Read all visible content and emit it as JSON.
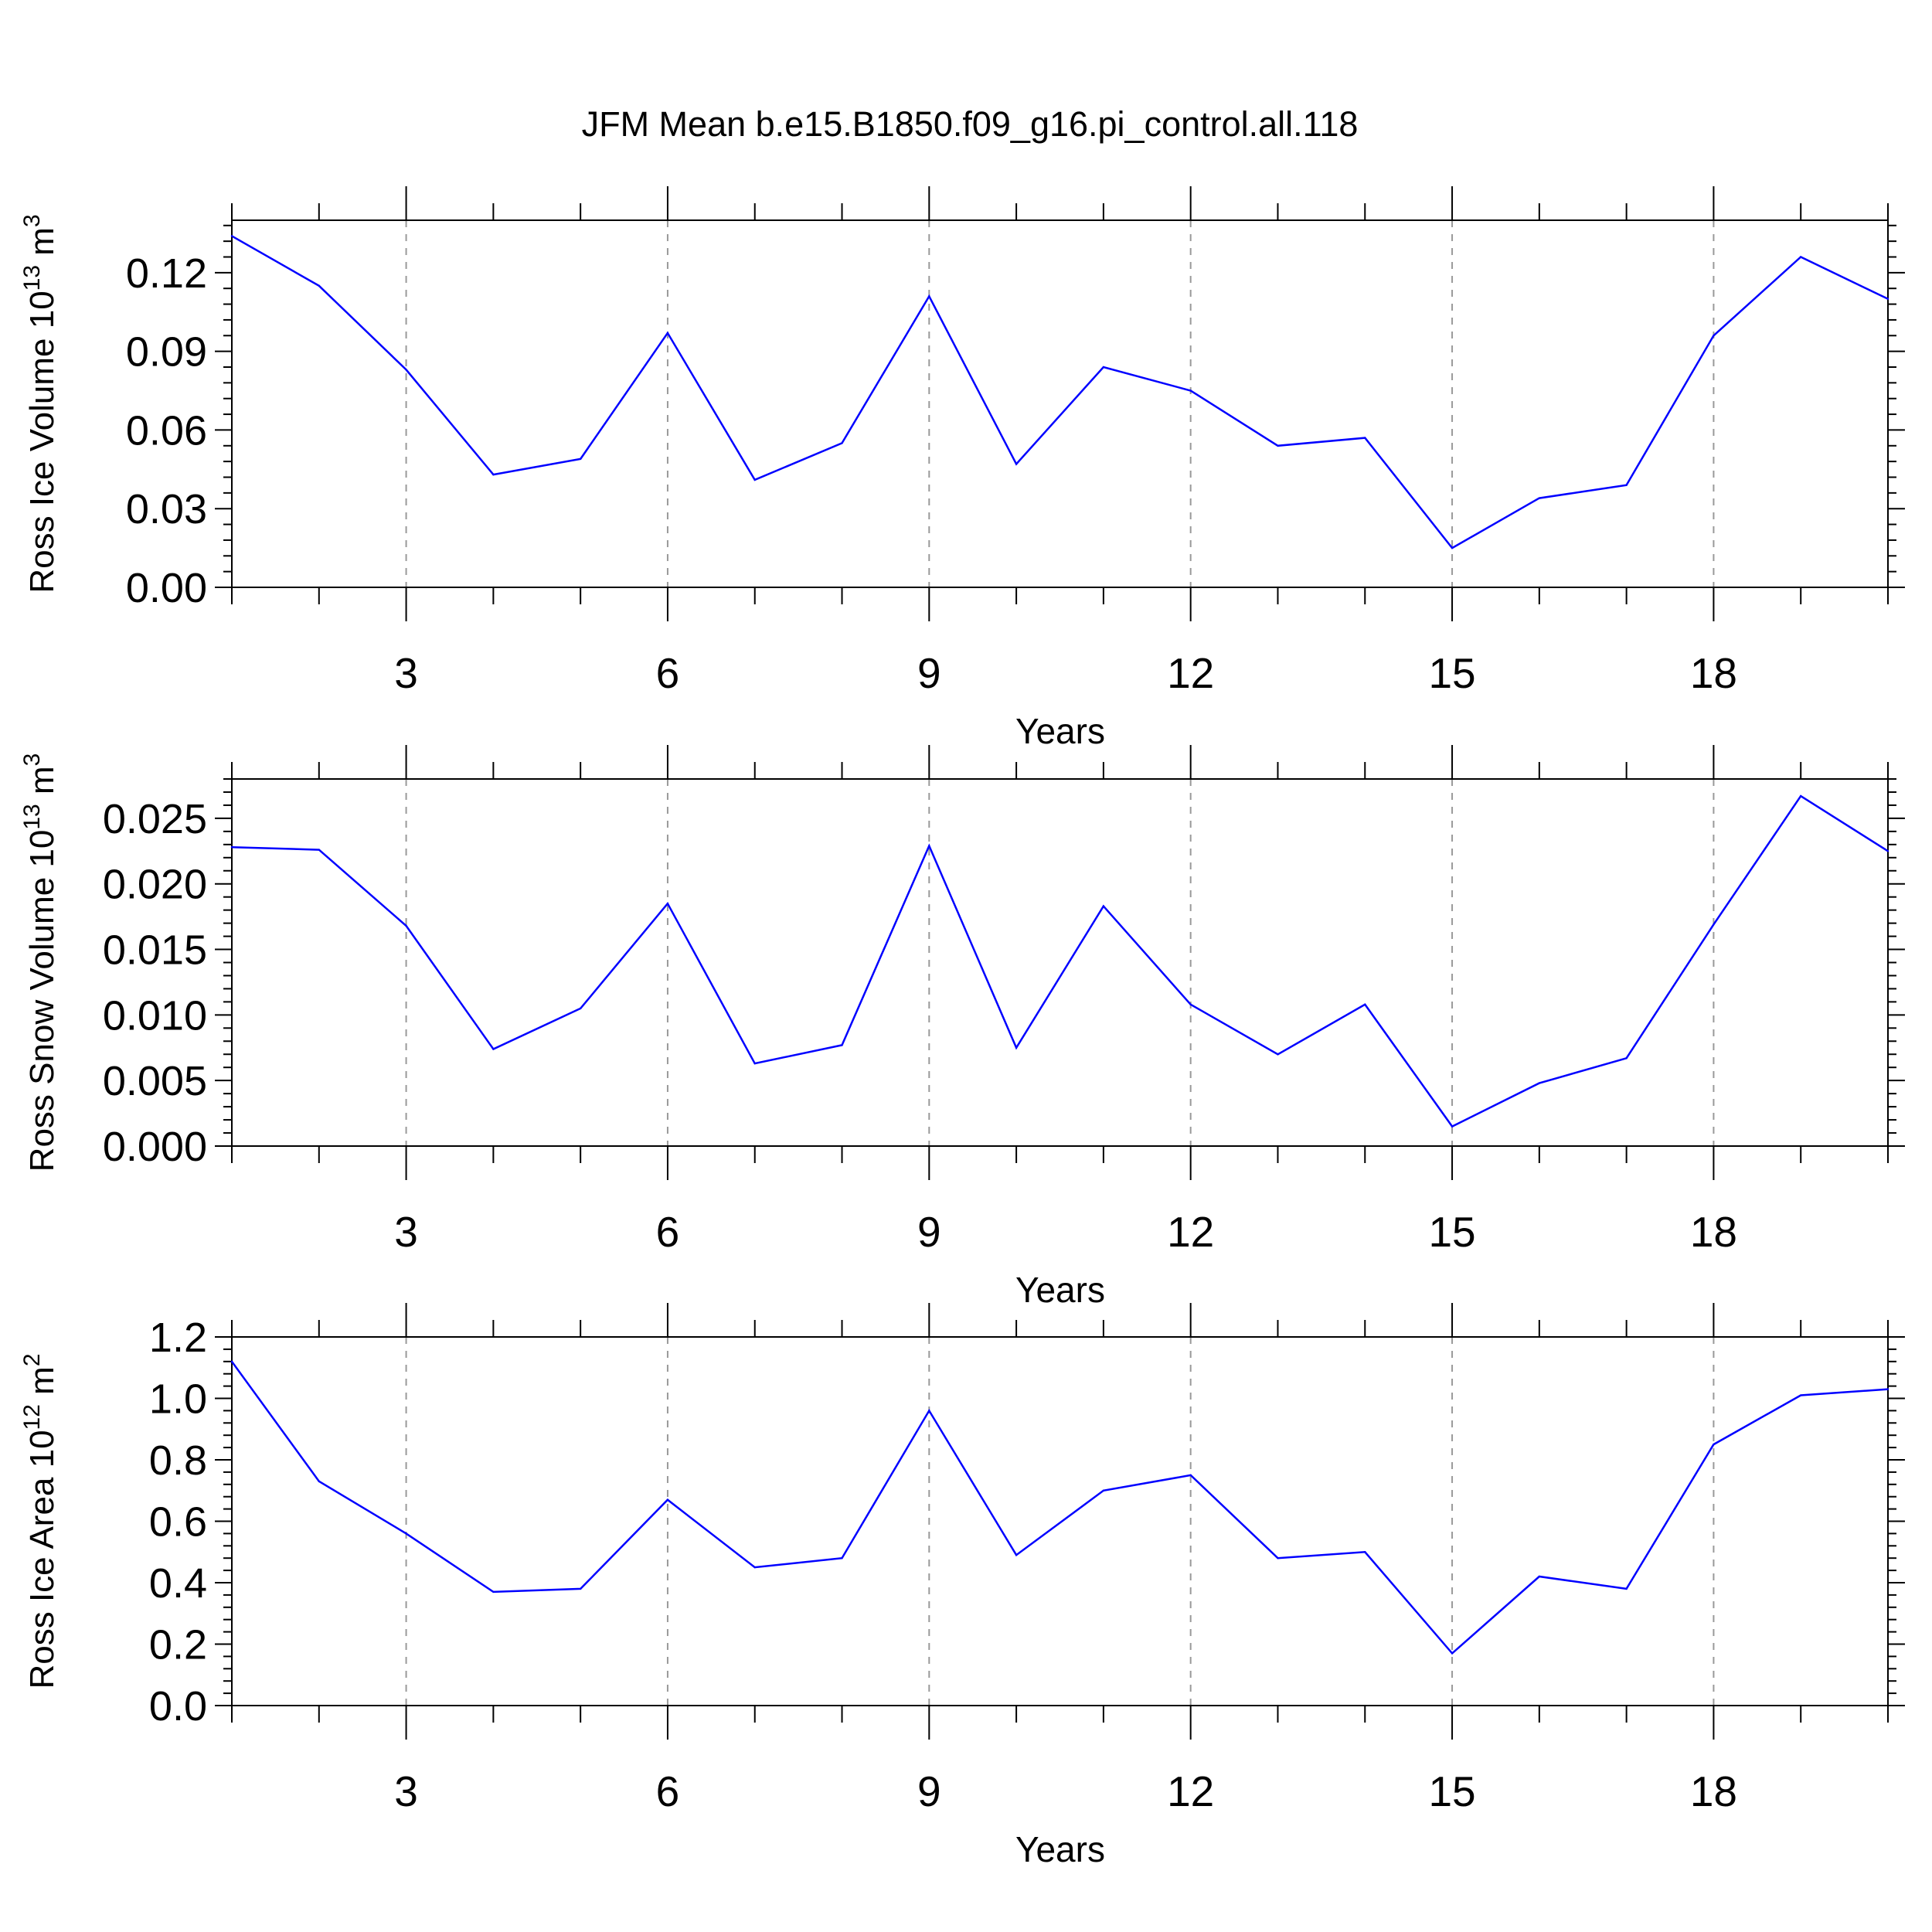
{
  "title": "JFM Mean b.e15.B1850.f09_g16.pi_control.all.118",
  "colors": {
    "line": "#0000ff",
    "axis": "#000000",
    "grid": "#999999",
    "background": "#ffffff"
  },
  "chart_data": [
    {
      "type": "line",
      "ylabel": {
        "text": "Ross Ice Volume 10",
        "exp": "13",
        "unit": " m",
        "unit_exp": "3"
      },
      "xlabel": "Years",
      "xlim": [
        1,
        20
      ],
      "ylim": [
        0,
        0.14
      ],
      "xticks": [
        "3",
        "6",
        "9",
        "12",
        "15",
        "18"
      ],
      "yticks": [
        "0.00",
        "0.03",
        "0.06",
        "0.09",
        "0.12"
      ],
      "ytick_values": [
        0,
        0.03,
        0.06,
        0.09,
        0.12
      ],
      "grid_x": true,
      "series": [
        {
          "x": [
            1,
            2,
            3,
            4,
            5,
            6,
            7,
            8,
            9,
            10,
            11,
            12,
            13,
            14,
            15,
            16,
            17,
            18,
            19,
            20
          ],
          "values": [
            0.134,
            0.115,
            0.083,
            0.043,
            0.049,
            0.097,
            0.041,
            0.055,
            0.111,
            0.047,
            0.084,
            0.075,
            0.054,
            0.057,
            0.015,
            0.034,
            0.039,
            0.096,
            0.126,
            0.11
          ]
        }
      ]
    },
    {
      "type": "line",
      "ylabel": {
        "text": "Ross Snow Volume 10",
        "exp": "13",
        "unit": " m",
        "unit_exp": "3"
      },
      "xlabel": "Years",
      "xlim": [
        1,
        20
      ],
      "ylim": [
        0,
        0.028
      ],
      "xticks": [
        "3",
        "6",
        "9",
        "12",
        "15",
        "18"
      ],
      "yticks": [
        "0.000",
        "0.005",
        "0.010",
        "0.015",
        "0.020",
        "0.025"
      ],
      "ytick_values": [
        0,
        0.005,
        0.01,
        0.015,
        0.02,
        0.025
      ],
      "grid_x": true,
      "series": [
        {
          "x": [
            1,
            2,
            3,
            4,
            5,
            6,
            7,
            8,
            9,
            10,
            11,
            12,
            13,
            14,
            15,
            16,
            17,
            18,
            19,
            20
          ],
          "values": [
            0.0228,
            0.0226,
            0.0168,
            0.0074,
            0.0105,
            0.0185,
            0.0063,
            0.0077,
            0.0229,
            0.0075,
            0.0183,
            0.0108,
            0.007,
            0.0108,
            0.0015,
            0.0048,
            0.0067,
            0.0169,
            0.0267,
            0.0225
          ]
        }
      ]
    },
    {
      "type": "line",
      "ylabel": {
        "text": "Ross Ice Area 10",
        "exp": "12",
        "unit": " m",
        "unit_exp": "2"
      },
      "xlabel": "Years",
      "xlim": [
        1,
        20
      ],
      "ylim": [
        0,
        1.2
      ],
      "xticks": [
        "3",
        "6",
        "9",
        "12",
        "15",
        "18"
      ],
      "yticks": [
        "0.0",
        "0.2",
        "0.4",
        "0.6",
        "0.8",
        "1.0",
        "1.2"
      ],
      "ytick_values": [
        0,
        0.2,
        0.4,
        0.6,
        0.8,
        1.0,
        1.2
      ],
      "grid_x": true,
      "series": [
        {
          "x": [
            1,
            2,
            3,
            4,
            5,
            6,
            7,
            8,
            9,
            10,
            11,
            12,
            13,
            14,
            15,
            16,
            17,
            18,
            19,
            20
          ],
          "values": [
            1.12,
            0.73,
            0.56,
            0.37,
            0.38,
            0.67,
            0.45,
            0.48,
            0.96,
            0.49,
            0.7,
            0.75,
            0.48,
            0.5,
            0.17,
            0.42,
            0.38,
            0.85,
            1.01,
            1.03
          ]
        }
      ]
    }
  ]
}
